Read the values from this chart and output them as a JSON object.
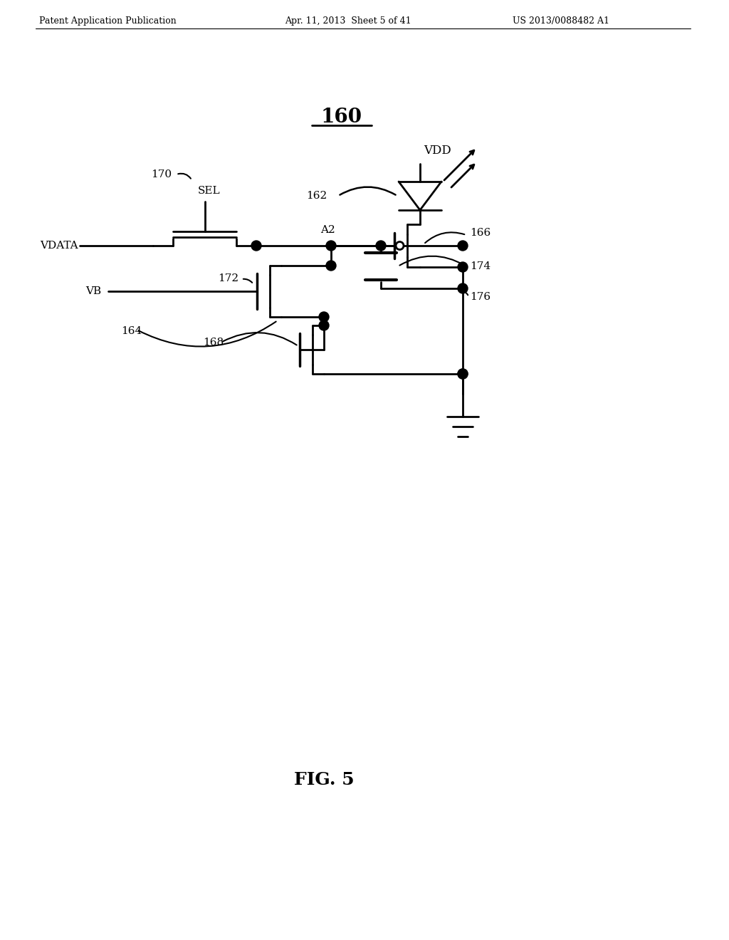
{
  "header_left": "Patent Application Publication",
  "header_mid": "Apr. 11, 2013  Sheet 5 of 41",
  "header_right": "US 2013/0088482 A1",
  "title": "160",
  "fig_label": "FIG. 5",
  "bg_color": "#ffffff",
  "line_color": "#000000"
}
